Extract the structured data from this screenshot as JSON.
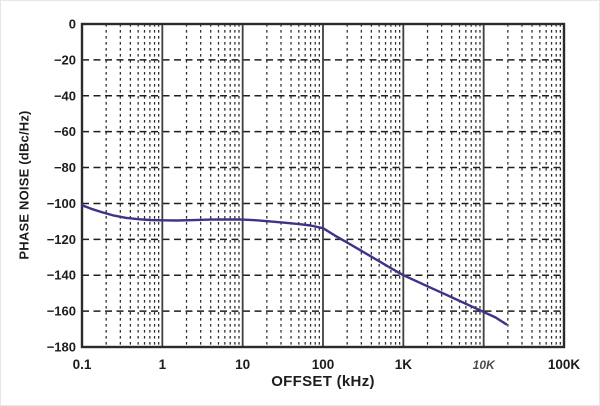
{
  "chart_data": {
    "type": "line",
    "title": "",
    "xlabel": "OFFSET (kHz)",
    "ylabel": "PHASE NOISE (dBc/Hz)",
    "x_scale": "log",
    "xlim": [
      0.1,
      100000
    ],
    "ylim": [
      -180,
      0
    ],
    "grid": {
      "major_horizontal": "dashed",
      "minor_vertical_log": "dotted",
      "decade_vertical": "solid",
      "legend_position": "none"
    },
    "y_ticks": [
      {
        "value": 0,
        "label": "0"
      },
      {
        "value": -20,
        "label": "−20"
      },
      {
        "value": -40,
        "label": "−40"
      },
      {
        "value": -60,
        "label": "−60"
      },
      {
        "value": -80,
        "label": "−80"
      },
      {
        "value": -100,
        "label": "−100"
      },
      {
        "value": -120,
        "label": "−120"
      },
      {
        "value": -140,
        "label": "−140"
      },
      {
        "value": -160,
        "label": "−160"
      },
      {
        "value": -180,
        "label": "−180"
      }
    ],
    "x_ticks": [
      {
        "value": 0.1,
        "label": "0.1"
      },
      {
        "value": 1,
        "label": "1"
      },
      {
        "value": 10,
        "label": "10"
      },
      {
        "value": 100,
        "label": "100"
      },
      {
        "value": 1000,
        "label": "1K"
      },
      {
        "value": 10000,
        "label": "10K",
        "degraded": true
      },
      {
        "value": 100000,
        "label": "100K"
      }
    ],
    "series": [
      {
        "name": "phase-noise",
        "color": "#3e3487",
        "points_unit": [
          "offset_kHz",
          "dBc_per_Hz"
        ],
        "points": [
          [
            0.1,
            -101
          ],
          [
            0.13,
            -103
          ],
          [
            0.18,
            -105
          ],
          [
            0.25,
            -106.8
          ],
          [
            0.35,
            -108
          ],
          [
            0.5,
            -108.8
          ],
          [
            0.7,
            -109.2
          ],
          [
            1,
            -109.4
          ],
          [
            1.5,
            -109.5
          ],
          [
            2.5,
            -109.3
          ],
          [
            4,
            -109
          ],
          [
            6,
            -108.9
          ],
          [
            10,
            -109
          ],
          [
            15,
            -109.4
          ],
          [
            22,
            -110
          ],
          [
            32,
            -110.7
          ],
          [
            50,
            -111.5
          ],
          [
            70,
            -112.3
          ],
          [
            100,
            -113.8
          ],
          [
            140,
            -117.8
          ],
          [
            200,
            -121.8
          ],
          [
            300,
            -126.4
          ],
          [
            450,
            -131
          ],
          [
            650,
            -135.2
          ],
          [
            1000,
            -140
          ],
          [
            1500,
            -143.6
          ],
          [
            2200,
            -147
          ],
          [
            3200,
            -150.3
          ],
          [
            5000,
            -154.3
          ],
          [
            7500,
            -157.9
          ],
          [
            10000,
            -160.5
          ],
          [
            14000,
            -163.5
          ],
          [
            19000,
            -167.3
          ]
        ]
      }
    ]
  },
  "colors": {
    "background": "#ffffff",
    "plot_border": "#2b2b2b",
    "grid_major": "#1f1f1f",
    "grid_minor": "#2a2a2a",
    "decade_line": "#404040",
    "text": "#1d1d1d",
    "curve": "#3e3487"
  }
}
